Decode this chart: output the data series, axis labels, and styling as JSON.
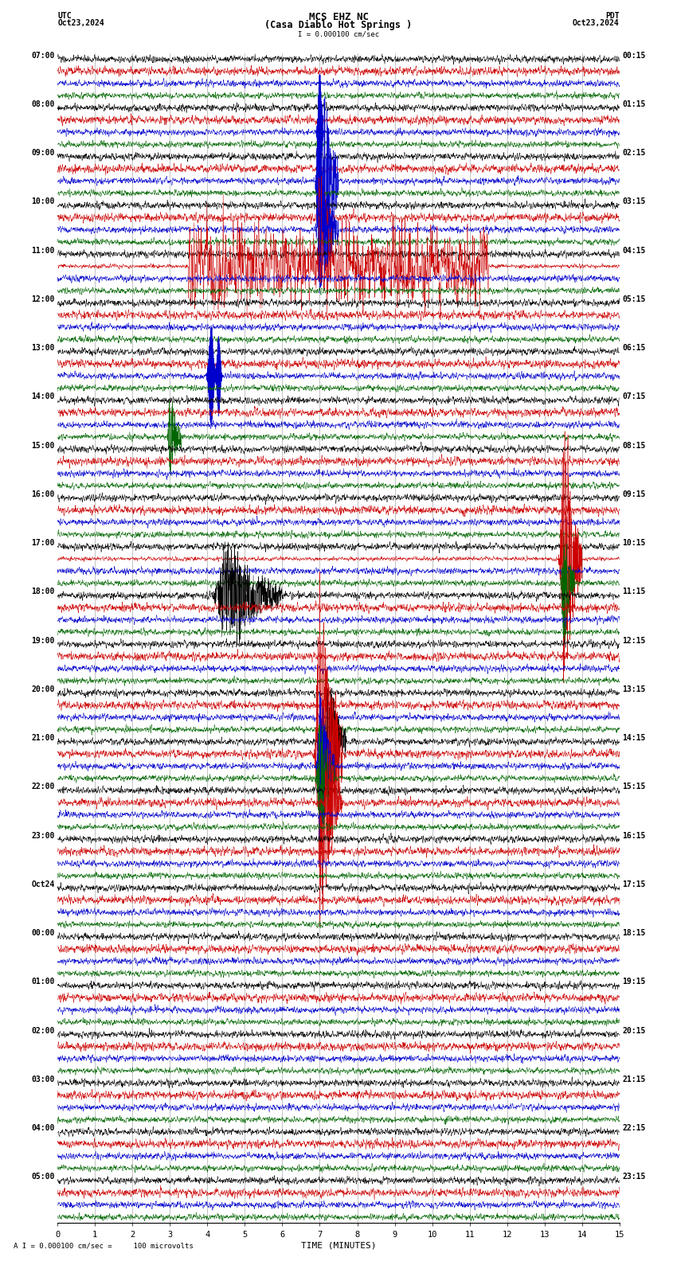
{
  "title_line1": "MCS EHZ NC",
  "title_line2": "(Casa Diablo Hot Springs )",
  "scale_label": "I = 0.000100 cm/sec",
  "utc_label": "UTC",
  "pdt_label": "PDT",
  "date_left": "Oct23,2024",
  "date_right": "Oct23,2024",
  "xlabel": "TIME (MINUTES)",
  "footer_label": "A I = 0.000100 cm/sec =     100 microvolts",
  "x_min": 0,
  "x_max": 15,
  "x_ticks": [
    0,
    1,
    2,
    3,
    4,
    5,
    6,
    7,
    8,
    9,
    10,
    11,
    12,
    13,
    14,
    15
  ],
  "background_color": "#ffffff",
  "trace_colors": [
    "#000000",
    "#cc0000",
    "#0000cc",
    "#006600"
  ],
  "n_groups": 24,
  "traces_per_group": 4,
  "utc_times": [
    "07:00",
    "08:00",
    "09:00",
    "10:00",
    "11:00",
    "12:00",
    "13:00",
    "14:00",
    "15:00",
    "16:00",
    "17:00",
    "18:00",
    "19:00",
    "20:00",
    "21:00",
    "22:00",
    "23:00",
    "Oct24",
    "00:00",
    "01:00",
    "02:00",
    "03:00",
    "04:00",
    "05:00"
  ],
  "pdt_times": [
    "00:15",
    "01:15",
    "02:15",
    "03:15",
    "04:15",
    "05:15",
    "06:15",
    "07:15",
    "08:15",
    "09:15",
    "10:15",
    "11:15",
    "12:15",
    "13:15",
    "14:15",
    "15:15",
    "16:15",
    "17:15",
    "18:15",
    "19:15",
    "20:15",
    "21:15",
    "22:15",
    "23:15"
  ],
  "grid_color": "#888888",
  "title_fontsize": 9,
  "label_fontsize": 7,
  "tick_fontsize": 7.5
}
